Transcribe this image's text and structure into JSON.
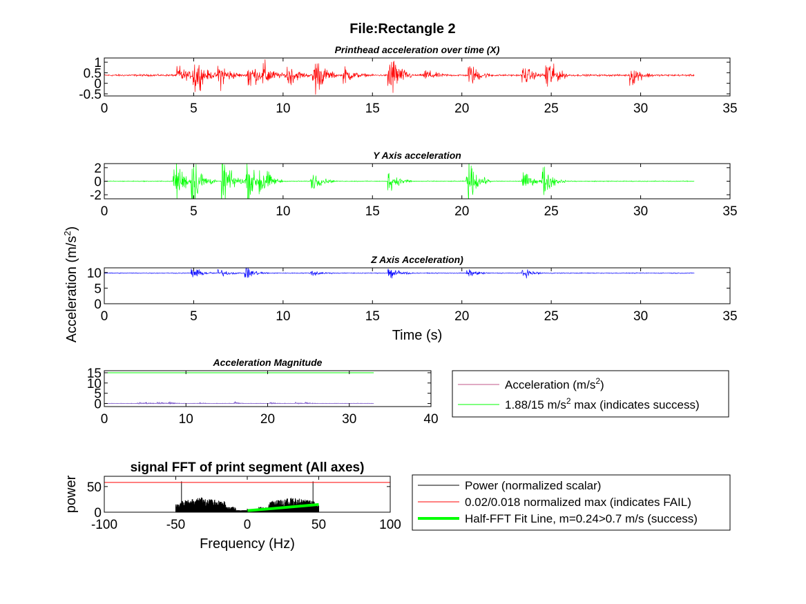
{
  "figure": {
    "title": "File:Rectangle 2",
    "shared_ylabel": "Acceleration (m/s²)"
  },
  "chart_data": [
    {
      "id": "x",
      "type": "line",
      "title": "Printhead acceleration over time (X)",
      "xlabel": "",
      "ylabel": "",
      "xlim": [
        0,
        35
      ],
      "ylim": [
        -0.6,
        1.2
      ],
      "xticks": [
        0,
        5,
        10,
        15,
        20,
        25,
        30,
        35
      ],
      "yticks": [
        -0.5,
        0,
        0.5,
        1
      ],
      "ytick_labels": [
        "-0.5",
        "0",
        "0.5",
        "1"
      ],
      "series": [
        {
          "color": "#ff0000",
          "x_range": [
            0,
            33
          ],
          "baseline": 0.38,
          "noise": 0.03,
          "bursts": [
            {
              "t": 4.2,
              "amp": 0.3
            },
            {
              "t": 5.1,
              "amp": 0.6
            },
            {
              "t": 6.5,
              "amp": 0.45
            },
            {
              "t": 8.1,
              "amp": 0.55
            },
            {
              "t": 9.0,
              "amp": 0.35
            },
            {
              "t": 10.3,
              "amp": 0.4
            },
            {
              "t": 11.8,
              "amp": 0.7
            },
            {
              "t": 13.5,
              "amp": 0.25
            },
            {
              "t": 16.0,
              "amp": 0.85
            },
            {
              "t": 18.0,
              "amp": 0.2
            },
            {
              "t": 20.5,
              "amp": 0.35
            },
            {
              "t": 23.5,
              "amp": 0.3
            },
            {
              "t": 24.8,
              "amp": 0.6
            },
            {
              "t": 29.5,
              "amp": 0.35
            }
          ]
        }
      ]
    },
    {
      "id": "y",
      "type": "line",
      "title": "Y Axis acceleration",
      "xlabel": "",
      "ylabel": "",
      "xlim": [
        0,
        35
      ],
      "ylim": [
        -2.6,
        2.6
      ],
      "xticks": [
        0,
        5,
        10,
        15,
        20,
        25,
        30,
        35
      ],
      "yticks": [
        -2,
        0,
        2
      ],
      "ytick_labels": [
        "-2",
        "0",
        "2"
      ],
      "series": [
        {
          "color": "#00ff00",
          "x_range": [
            0,
            33
          ],
          "baseline": 0.0,
          "noise": 0.04,
          "bursts": [
            {
              "t": 4.0,
              "amp": 2.3
            },
            {
              "t": 5.0,
              "amp": 2.5
            },
            {
              "t": 6.7,
              "amp": 2.3
            },
            {
              "t": 8.0,
              "amp": 2.2
            },
            {
              "t": 8.8,
              "amp": 1.7
            },
            {
              "t": 11.7,
              "amp": 0.9
            },
            {
              "t": 16.0,
              "amp": 1.0
            },
            {
              "t": 20.4,
              "amp": 2.0
            },
            {
              "t": 23.5,
              "amp": 0.9
            },
            {
              "t": 24.6,
              "amp": 1.5
            }
          ]
        }
      ]
    },
    {
      "id": "z",
      "type": "line",
      "title": "Z Axis Acceleration)",
      "xlabel": "Time (s)",
      "ylabel": "",
      "xlim": [
        0,
        35
      ],
      "ylim": [
        0,
        11.5
      ],
      "xticks": [
        0,
        5,
        10,
        15,
        20,
        25,
        30,
        35
      ],
      "yticks": [
        0,
        5,
        10
      ],
      "ytick_labels": [
        "0",
        "5",
        "10"
      ],
      "series": [
        {
          "color": "#0000ff",
          "x_range": [
            0,
            33
          ],
          "baseline": 9.8,
          "noise": 0.08,
          "bursts": [
            {
              "t": 5.0,
              "amp": 1.2
            },
            {
              "t": 6.5,
              "amp": 0.8
            },
            {
              "t": 8.0,
              "amp": 1.2
            },
            {
              "t": 11.7,
              "amp": 0.6
            },
            {
              "t": 16.0,
              "amp": 1.6
            },
            {
              "t": 20.4,
              "amp": 0.7
            },
            {
              "t": 23.5,
              "amp": 1.0
            }
          ]
        }
      ]
    },
    {
      "id": "mag",
      "type": "line",
      "title": "Acceleration Magnitude",
      "xlabel": "",
      "ylabel": "",
      "xlim": [
        0,
        40
      ],
      "ylim": [
        -1.5,
        16
      ],
      "xticks": [
        0,
        10,
        20,
        30,
        40
      ],
      "yticks": [
        0,
        5,
        10,
        15
      ],
      "ytick_labels": [
        "0",
        "5",
        "10",
        "15"
      ],
      "series": [
        {
          "name": "Acceleration (m/s²)",
          "color": "#7b58c9",
          "x_range": [
            0,
            33
          ],
          "baseline": 0.0,
          "noise": 0.12,
          "bursts": [
            {
              "t": 4.2,
              "amp": 0.6
            },
            {
              "t": 5.1,
              "amp": 0.9
            },
            {
              "t": 6.6,
              "amp": 0.9
            },
            {
              "t": 8.0,
              "amp": 0.9
            },
            {
              "t": 11.7,
              "amp": 0.5
            },
            {
              "t": 16.0,
              "amp": 1.0
            },
            {
              "t": 20.4,
              "amp": 0.6
            },
            {
              "t": 23.5,
              "amp": 0.6
            },
            {
              "t": 24.7,
              "amp": 0.6
            }
          ]
        },
        {
          "name": "1.88/15 m/s² max (indicates success)",
          "color": "#00ff00",
          "x": [
            0,
            33
          ],
          "y": [
            15,
            15
          ]
        }
      ],
      "legend": [
        {
          "label": "Acceleration (m/s",
          "sup": "2",
          "tail": ")",
          "color": "#c2558a"
        },
        {
          "label": "1.88/15 m/s",
          "sup": "2",
          "tail": " max (indicates success)",
          "color": "#00ff00"
        }
      ]
    },
    {
      "id": "fft",
      "type": "line",
      "title": "signal FFT of print segment (All axes)",
      "xlabel": "Frequency (Hz)",
      "ylabel": "power",
      "xlim": [
        -100,
        100
      ],
      "ylim": [
        0,
        70
      ],
      "xticks": [
        -100,
        -50,
        0,
        50,
        100
      ],
      "yticks": [
        0,
        50
      ],
      "ytick_labels": [
        "0",
        "50"
      ],
      "series": [
        {
          "name": "Power (normalized scalar)",
          "color": "#000000",
          "x_range": [
            -50,
            50
          ],
          "peaks": [
            {
              "f": -46,
              "p": 60
            },
            {
              "f": 46,
              "p": 60
            }
          ]
        },
        {
          "name": "0.02/0.018 normalized max (indicates FAIL)",
          "color": "#ff0000",
          "x": [
            -100,
            100
          ],
          "y": [
            58,
            58
          ]
        },
        {
          "name": "Half-FFT Fit Line, m=0.24>0.7 m/s (success)",
          "color": "#00ff00",
          "x": [
            0,
            50
          ],
          "y": [
            3,
            15
          ]
        }
      ],
      "legend": [
        {
          "label": "Power (normalized scalar)",
          "color": "#000000",
          "width": 1
        },
        {
          "label": "0.02/0.018 normalized max (indicates FAIL)",
          "color": "#ff0000",
          "width": 1
        },
        {
          "label": "Half-FFT Fit Line, m=0.24>0.7 m/s (success)",
          "color": "#00ff00",
          "width": 4
        }
      ]
    }
  ]
}
